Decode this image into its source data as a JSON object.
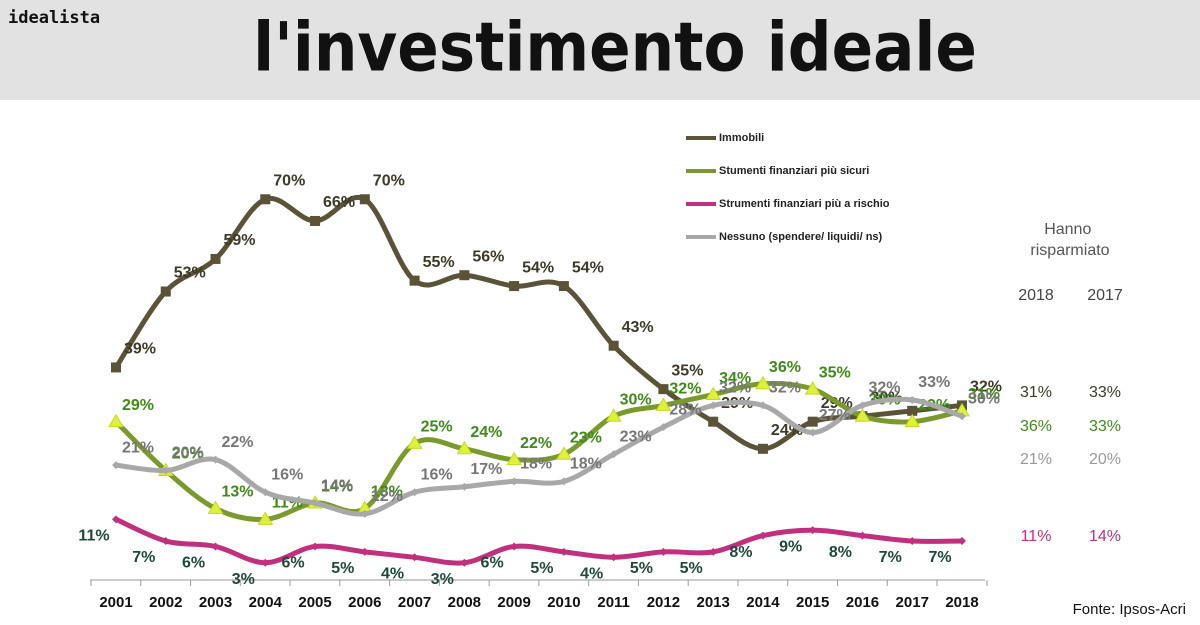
{
  "brand": "idealista",
  "chart_data": {
    "type": "line",
    "title": "l'investimento ideale",
    "categories": [
      "2001",
      "2002",
      "2003",
      "2004",
      "2005",
      "2006",
      "2007",
      "2008",
      "2009",
      "2010",
      "2011",
      "2012",
      "2013",
      "2014",
      "2015",
      "2016",
      "2017",
      "2018"
    ],
    "ylim": [
      0,
      73
    ],
    "series": [
      {
        "name": "Immobili",
        "color": "#5a5338",
        "label_color": "#3d3a28",
        "marker": "square",
        "values": [
          39,
          53,
          59,
          70,
          66,
          70,
          55,
          56,
          54,
          54,
          43,
          35,
          29,
          24,
          29,
          30,
          31,
          32
        ],
        "value_labels": [
          "39%",
          "53%",
          "59%",
          "70%",
          "66%",
          "70%",
          "55%",
          "56%",
          "54%",
          "54%",
          "43%",
          "35%",
          "29%",
          "24%",
          "29%",
          "30%",
          null,
          "32%"
        ]
      },
      {
        "name": "Stumenti finanziari più sicuri",
        "color": "#7a9a2e",
        "label_color": "#3f8a1a",
        "marker": "triangle",
        "values": [
          29,
          20,
          13,
          11,
          14,
          13,
          25,
          24,
          22,
          23,
          30,
          32,
          34,
          36,
          35,
          30,
          29,
          31
        ],
        "value_labels": [
          "29%",
          "20%",
          "13%",
          "11%",
          "14%",
          "13%",
          "25%",
          "24%",
          "22%",
          "23%",
          "30%",
          "32%",
          "34%",
          "36%",
          "35%",
          "30%",
          "29%",
          "31%"
        ]
      },
      {
        "name": "Strumenti finanziari più a rischio",
        "color": "#c0307f",
        "label_color": "#1f4a3a",
        "marker": "diamond",
        "values": [
          11,
          7,
          6,
          3,
          6,
          5,
          4,
          3,
          6,
          5,
          4,
          5,
          5,
          8,
          9,
          8,
          7,
          7
        ],
        "value_labels": [
          "11%",
          "7%",
          "6%",
          "3%",
          "6%",
          "5%",
          "4%",
          "3%",
          "6%",
          "5%",
          "4%",
          "5%",
          "5%",
          "8%",
          "9%",
          "8%",
          "7%",
          "7%"
        ]
      },
      {
        "name": "Nessuno (spendere/ liquidi/ ns)",
        "color": "#a8a8a8",
        "label_color": "#777777",
        "marker": "diamond",
        "values": [
          21,
          20,
          22,
          16,
          14,
          12,
          16,
          17,
          18,
          18,
          23,
          28,
          32,
          32,
          27,
          32,
          33,
          30
        ],
        "value_labels": [
          "21%",
          "20%",
          "22%",
          "16%",
          "14%",
          "12%",
          "16%",
          "17%",
          "18%",
          "18%",
          "23%",
          "28%",
          "32%",
          "32%",
          "27%",
          "32%",
          "33%",
          "30%"
        ]
      }
    ]
  },
  "side_table": {
    "title": "Hanno risparmiato",
    "columns": [
      "2018",
      "2017"
    ],
    "rows": [
      [
        "31%",
        "33%"
      ],
      [
        "36%",
        "33%"
      ],
      [
        "21%",
        "20%"
      ],
      [
        "11%",
        "14%"
      ]
    ],
    "row_colors": [
      "#3d3a28",
      "#3f8a1a",
      "#999999",
      "#c0307f"
    ]
  },
  "source": "Fonte: Ipsos-Acri"
}
